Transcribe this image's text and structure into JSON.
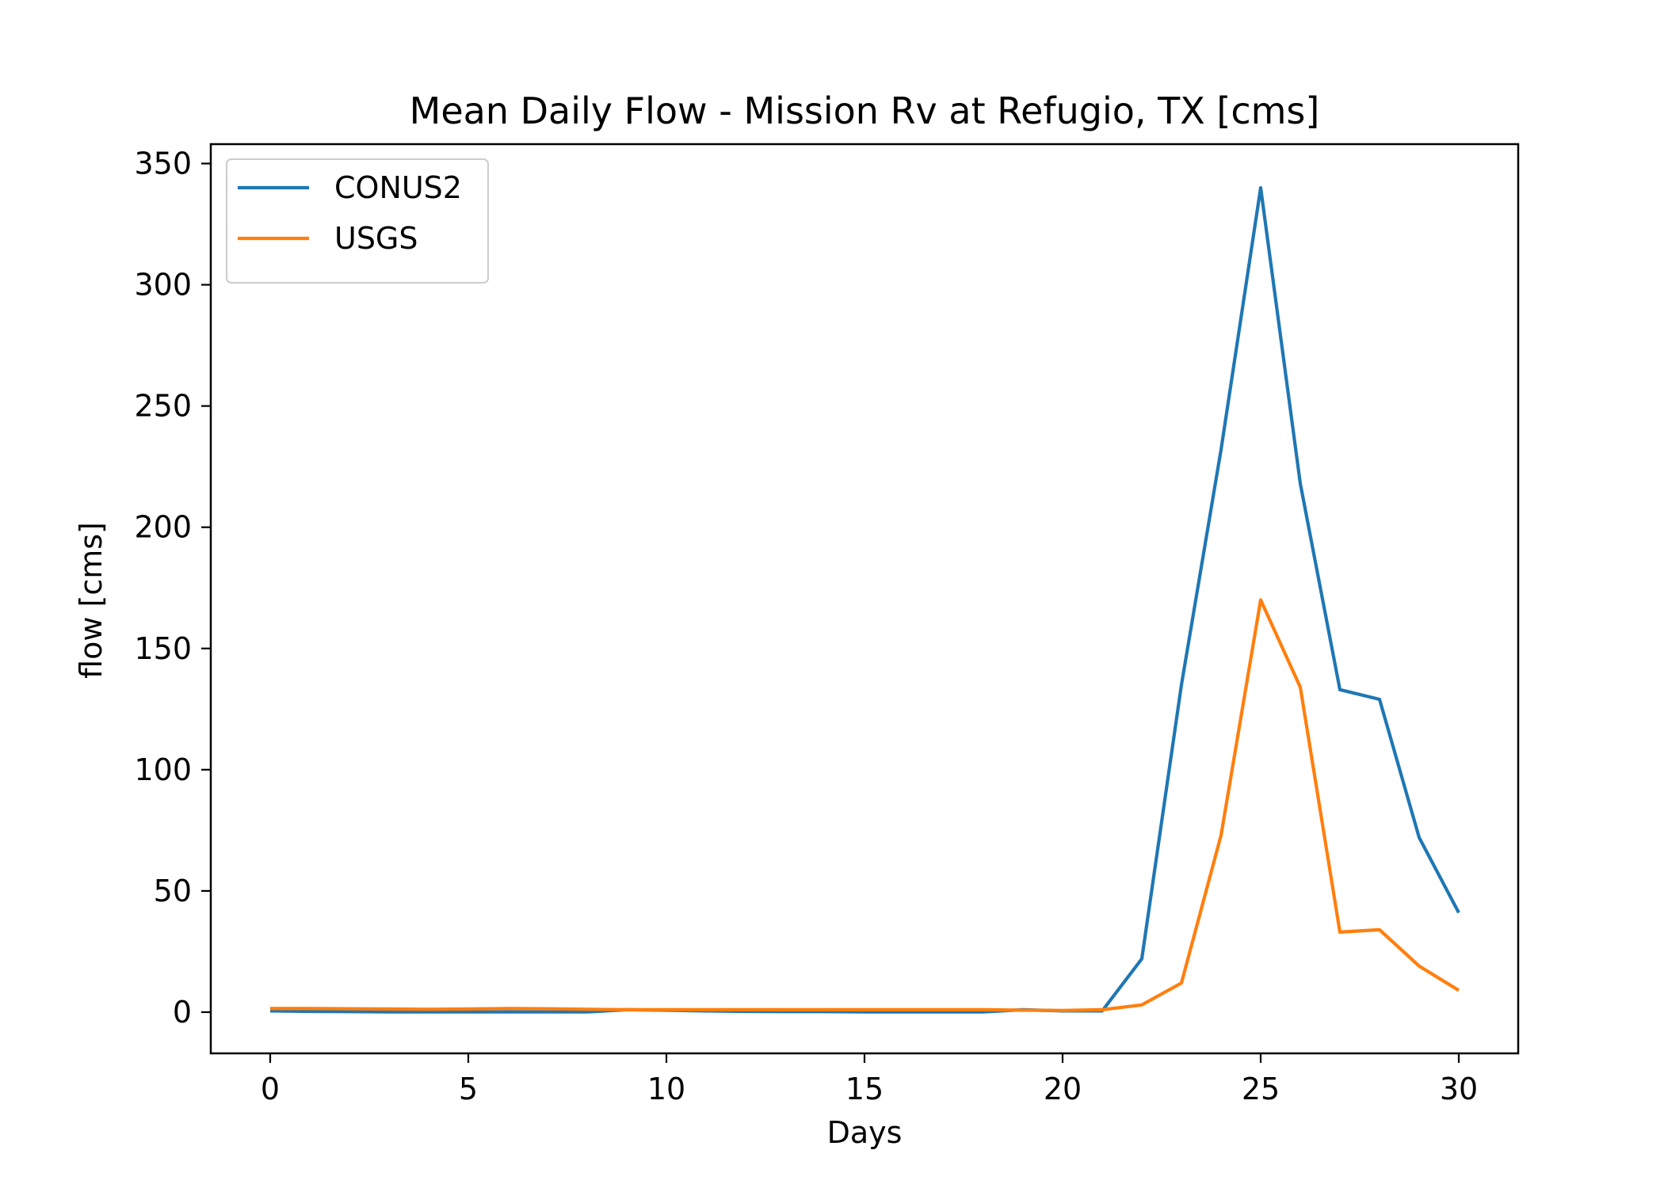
{
  "chart_data": {
    "type": "line",
    "title": "Mean Daily Flow - Mission Rv at Refugio, TX [cms]",
    "xlabel": "Days",
    "ylabel": "flow [cms]",
    "xlim": [
      -1.5,
      31.5
    ],
    "ylim": [
      -17,
      358
    ],
    "xticks": [
      0,
      5,
      10,
      15,
      20,
      25,
      30
    ],
    "yticks": [
      0,
      50,
      100,
      150,
      200,
      250,
      300,
      350
    ],
    "grid": false,
    "legend_position": "top-left",
    "x": [
      0,
      1,
      2,
      3,
      4,
      5,
      6,
      7,
      8,
      9,
      10,
      11,
      12,
      13,
      14,
      15,
      16,
      17,
      18,
      19,
      20,
      21,
      22,
      23,
      24,
      25,
      26,
      27,
      28,
      29,
      30
    ],
    "series": [
      {
        "name": "CONUS2",
        "color": "#1f77b4",
        "values": [
          0.5,
          0.3,
          0.2,
          0.1,
          0.1,
          0.1,
          0.1,
          0.1,
          0.1,
          1.0,
          0.8,
          0.5,
          0.3,
          0.2,
          0.2,
          0.1,
          0.1,
          0.1,
          0.1,
          1.0,
          0.5,
          0.5,
          22,
          135,
          232,
          340,
          218,
          133,
          129,
          72,
          41
        ]
      },
      {
        "name": "USGS",
        "color": "#ff7f0e",
        "values": [
          1.5,
          1.5,
          1.4,
          1.3,
          1.2,
          1.3,
          1.5,
          1.4,
          1.2,
          1.0,
          1.0,
          1.0,
          1.0,
          1.0,
          1.0,
          1.0,
          1.0,
          1.0,
          1.0,
          0.8,
          0.7,
          1.0,
          3,
          12,
          73,
          170,
          134,
          33,
          34,
          19,
          9
        ]
      }
    ]
  }
}
